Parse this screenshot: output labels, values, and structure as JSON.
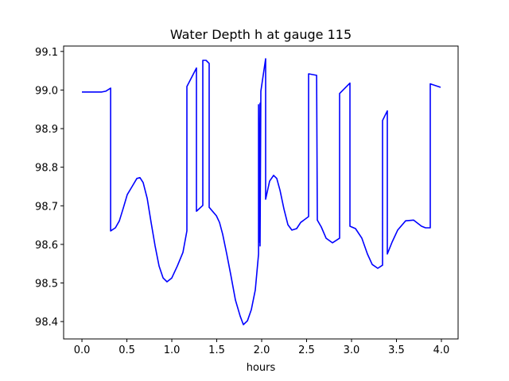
{
  "chart_data": {
    "type": "line",
    "title": "Water Depth h at gauge 115",
    "xlabel": "hours",
    "ylabel": "",
    "xlim": [
      -0.204,
      4.186
    ],
    "ylim": [
      98.355,
      99.114
    ],
    "grid": false,
    "legend": "none",
    "xticks": [
      0.0,
      0.5,
      1.0,
      1.5,
      2.0,
      2.5,
      3.0,
      3.5,
      4.0
    ],
    "xtick_labels": [
      "0.0",
      "0.5",
      "1.0",
      "1.5",
      "2.0",
      "2.5",
      "3.0",
      "3.5",
      "4.0"
    ],
    "yticks": [
      98.4,
      98.5,
      98.6,
      98.7,
      98.8,
      98.9,
      99.0,
      99.1
    ],
    "ytick_labels": [
      "98.4",
      "98.5",
      "98.6",
      "98.7",
      "98.8",
      "98.9",
      "99.0",
      "99.1"
    ],
    "series": [
      {
        "name": "h",
        "color": "#0000ff",
        "x": [
          0,
          0.221,
          0.265,
          0.319,
          0.319,
          0.372,
          0.416,
          0.46,
          0.504,
          0.558,
          0.611,
          0.646,
          0.681,
          0.726,
          0.77,
          0.814,
          0.858,
          0.903,
          0.947,
          1.0,
          1.062,
          1.124,
          1.168,
          1.168,
          1.274,
          1.274,
          1.345,
          1.345,
          1.381,
          1.416,
          1.416,
          1.496,
          1.531,
          1.566,
          1.611,
          1.655,
          1.708,
          1.761,
          1.796,
          1.841,
          1.885,
          1.929,
          1.965,
          1.965,
          1.973,
          1.982,
          1.982,
          1.991,
          2.044,
          2.044,
          2.088,
          2.133,
          2.168,
          2.204,
          2.248,
          2.292,
          2.336,
          2.389,
          2.434,
          2.522,
          2.522,
          2.611,
          2.619,
          2.664,
          2.717,
          2.788,
          2.867,
          2.867,
          2.982,
          2.982,
          3.044,
          3.115,
          3.177,
          3.23,
          3.292,
          3.345,
          3.345,
          3.398,
          3.398,
          3.451,
          3.513,
          3.602,
          3.69,
          3.779,
          3.823,
          3.876,
          3.876,
          3.991
        ],
        "y": [
          98.995,
          98.995,
          98.997,
          99.005,
          98.635,
          98.643,
          98.661,
          98.694,
          98.729,
          98.75,
          98.771,
          98.773,
          98.76,
          98.719,
          98.657,
          98.596,
          98.544,
          98.513,
          98.503,
          98.513,
          98.544,
          98.579,
          98.635,
          99.009,
          99.057,
          98.686,
          98.701,
          99.077,
          99.077,
          99.069,
          98.696,
          98.674,
          98.657,
          98.626,
          98.575,
          98.523,
          98.456,
          98.414,
          98.392,
          98.402,
          98.431,
          98.482,
          98.575,
          98.962,
          98.606,
          98.966,
          98.596,
          98.997,
          99.081,
          98.717,
          98.764,
          98.779,
          98.771,
          98.74,
          98.692,
          98.651,
          98.637,
          98.641,
          98.657,
          98.672,
          99.042,
          99.038,
          98.663,
          98.645,
          98.616,
          98.604,
          98.616,
          98.991,
          99.018,
          98.647,
          98.641,
          98.616,
          98.575,
          98.548,
          98.538,
          98.546,
          98.921,
          98.946,
          98.575,
          98.606,
          98.637,
          98.661,
          98.663,
          98.647,
          98.643,
          98.643,
          99.016,
          99.007
        ]
      }
    ]
  }
}
